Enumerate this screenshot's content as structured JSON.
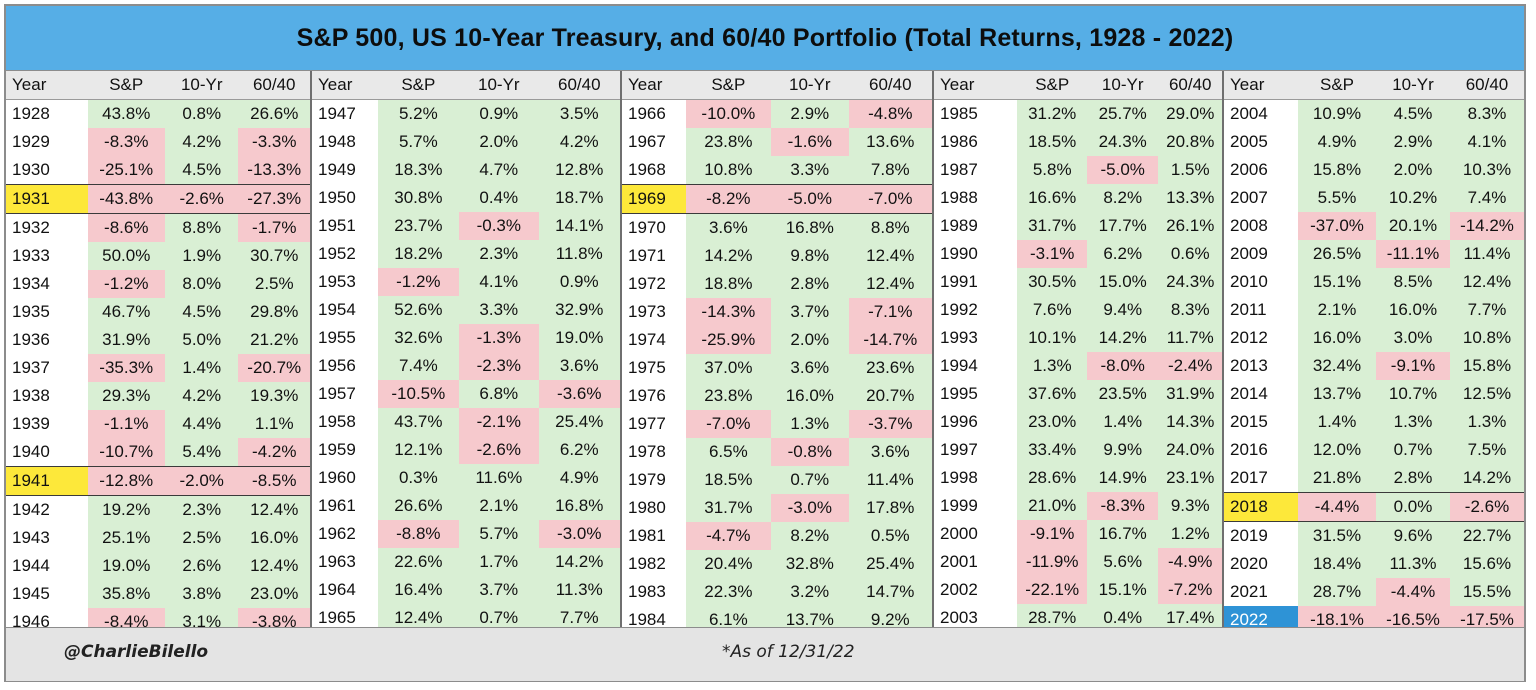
{
  "chart_data": {
    "type": "table",
    "title": "S&P 500, US 10-Year Treasury, and 60/40 Portfolio (Total Returns, 1928 - 2022)",
    "columns": [
      "Year",
      "S&P",
      "10-Yr",
      "60/40"
    ],
    "rows": [
      [
        "1928",
        "43.8%",
        "0.8%",
        "26.6%"
      ],
      [
        "1929",
        "-8.3%",
        "4.2%",
        "-3.3%"
      ],
      [
        "1930",
        "-25.1%",
        "4.5%",
        "-13.3%"
      ],
      [
        "1931",
        "-43.8%",
        "-2.6%",
        "-27.3%"
      ],
      [
        "1932",
        "-8.6%",
        "8.8%",
        "-1.7%"
      ],
      [
        "1933",
        "50.0%",
        "1.9%",
        "30.7%"
      ],
      [
        "1934",
        "-1.2%",
        "8.0%",
        "2.5%"
      ],
      [
        "1935",
        "46.7%",
        "4.5%",
        "29.8%"
      ],
      [
        "1936",
        "31.9%",
        "5.0%",
        "21.2%"
      ],
      [
        "1937",
        "-35.3%",
        "1.4%",
        "-20.7%"
      ],
      [
        "1938",
        "29.3%",
        "4.2%",
        "19.3%"
      ],
      [
        "1939",
        "-1.1%",
        "4.4%",
        "1.1%"
      ],
      [
        "1940",
        "-10.7%",
        "5.4%",
        "-4.2%"
      ],
      [
        "1941",
        "-12.8%",
        "-2.0%",
        "-8.5%"
      ],
      [
        "1942",
        "19.2%",
        "2.3%",
        "12.4%"
      ],
      [
        "1943",
        "25.1%",
        "2.5%",
        "16.0%"
      ],
      [
        "1944",
        "19.0%",
        "2.6%",
        "12.4%"
      ],
      [
        "1945",
        "35.8%",
        "3.8%",
        "23.0%"
      ],
      [
        "1946",
        "-8.4%",
        "3.1%",
        "-3.8%"
      ],
      [
        "1947",
        "5.2%",
        "0.9%",
        "3.5%"
      ],
      [
        "1948",
        "5.7%",
        "2.0%",
        "4.2%"
      ],
      [
        "1949",
        "18.3%",
        "4.7%",
        "12.8%"
      ],
      [
        "1950",
        "30.8%",
        "0.4%",
        "18.7%"
      ],
      [
        "1951",
        "23.7%",
        "-0.3%",
        "14.1%"
      ],
      [
        "1952",
        "18.2%",
        "2.3%",
        "11.8%"
      ],
      [
        "1953",
        "-1.2%",
        "4.1%",
        "0.9%"
      ],
      [
        "1954",
        "52.6%",
        "3.3%",
        "32.9%"
      ],
      [
        "1955",
        "32.6%",
        "-1.3%",
        "19.0%"
      ],
      [
        "1956",
        "7.4%",
        "-2.3%",
        "3.6%"
      ],
      [
        "1957",
        "-10.5%",
        "6.8%",
        "-3.6%"
      ],
      [
        "1958",
        "43.7%",
        "-2.1%",
        "25.4%"
      ],
      [
        "1959",
        "12.1%",
        "-2.6%",
        "6.2%"
      ],
      [
        "1960",
        "0.3%",
        "11.6%",
        "4.9%"
      ],
      [
        "1961",
        "26.6%",
        "2.1%",
        "16.8%"
      ],
      [
        "1962",
        "-8.8%",
        "5.7%",
        "-3.0%"
      ],
      [
        "1963",
        "22.6%",
        "1.7%",
        "14.2%"
      ],
      [
        "1964",
        "16.4%",
        "3.7%",
        "11.3%"
      ],
      [
        "1965",
        "12.4%",
        "0.7%",
        "7.7%"
      ],
      [
        "1966",
        "-10.0%",
        "2.9%",
        "-4.8%"
      ],
      [
        "1967",
        "23.8%",
        "-1.6%",
        "13.6%"
      ],
      [
        "1968",
        "10.8%",
        "3.3%",
        "7.8%"
      ],
      [
        "1969",
        "-8.2%",
        "-5.0%",
        "-7.0%"
      ],
      [
        "1970",
        "3.6%",
        "16.8%",
        "8.8%"
      ],
      [
        "1971",
        "14.2%",
        "9.8%",
        "12.4%"
      ],
      [
        "1972",
        "18.8%",
        "2.8%",
        "12.4%"
      ],
      [
        "1973",
        "-14.3%",
        "3.7%",
        "-7.1%"
      ],
      [
        "1974",
        "-25.9%",
        "2.0%",
        "-14.7%"
      ],
      [
        "1975",
        "37.0%",
        "3.6%",
        "23.6%"
      ],
      [
        "1976",
        "23.8%",
        "16.0%",
        "20.7%"
      ],
      [
        "1977",
        "-7.0%",
        "1.3%",
        "-3.7%"
      ],
      [
        "1978",
        "6.5%",
        "-0.8%",
        "3.6%"
      ],
      [
        "1979",
        "18.5%",
        "0.7%",
        "11.4%"
      ],
      [
        "1980",
        "31.7%",
        "-3.0%",
        "17.8%"
      ],
      [
        "1981",
        "-4.7%",
        "8.2%",
        "0.5%"
      ],
      [
        "1982",
        "20.4%",
        "32.8%",
        "25.4%"
      ],
      [
        "1983",
        "22.3%",
        "3.2%",
        "14.7%"
      ],
      [
        "1984",
        "6.1%",
        "13.7%",
        "9.2%"
      ],
      [
        "1985",
        "31.2%",
        "25.7%",
        "29.0%"
      ],
      [
        "1986",
        "18.5%",
        "24.3%",
        "20.8%"
      ],
      [
        "1987",
        "5.8%",
        "-5.0%",
        "1.5%"
      ],
      [
        "1988",
        "16.6%",
        "8.2%",
        "13.3%"
      ],
      [
        "1989",
        "31.7%",
        "17.7%",
        "26.1%"
      ],
      [
        "1990",
        "-3.1%",
        "6.2%",
        "0.6%"
      ],
      [
        "1991",
        "30.5%",
        "15.0%",
        "24.3%"
      ],
      [
        "1992",
        "7.6%",
        "9.4%",
        "8.3%"
      ],
      [
        "1993",
        "10.1%",
        "14.2%",
        "11.7%"
      ],
      [
        "1994",
        "1.3%",
        "-8.0%",
        "-2.4%"
      ],
      [
        "1995",
        "37.6%",
        "23.5%",
        "31.9%"
      ],
      [
        "1996",
        "23.0%",
        "1.4%",
        "14.3%"
      ],
      [
        "1997",
        "33.4%",
        "9.9%",
        "24.0%"
      ],
      [
        "1998",
        "28.6%",
        "14.9%",
        "23.1%"
      ],
      [
        "1999",
        "21.0%",
        "-8.3%",
        "9.3%"
      ],
      [
        "2000",
        "-9.1%",
        "16.7%",
        "1.2%"
      ],
      [
        "2001",
        "-11.9%",
        "5.6%",
        "-4.9%"
      ],
      [
        "2002",
        "-22.1%",
        "15.1%",
        "-7.2%"
      ],
      [
        "2003",
        "28.7%",
        "0.4%",
        "17.4%"
      ],
      [
        "2004",
        "10.9%",
        "4.5%",
        "8.3%"
      ],
      [
        "2005",
        "4.9%",
        "2.9%",
        "4.1%"
      ],
      [
        "2006",
        "15.8%",
        "2.0%",
        "10.3%"
      ],
      [
        "2007",
        "5.5%",
        "10.2%",
        "7.4%"
      ],
      [
        "2008",
        "-37.0%",
        "20.1%",
        "-14.2%"
      ],
      [
        "2009",
        "26.5%",
        "-11.1%",
        "11.4%"
      ],
      [
        "2010",
        "15.1%",
        "8.5%",
        "12.4%"
      ],
      [
        "2011",
        "2.1%",
        "16.0%",
        "7.7%"
      ],
      [
        "2012",
        "16.0%",
        "3.0%",
        "10.8%"
      ],
      [
        "2013",
        "32.4%",
        "-9.1%",
        "15.8%"
      ],
      [
        "2014",
        "13.7%",
        "10.7%",
        "12.5%"
      ],
      [
        "2015",
        "1.4%",
        "1.3%",
        "1.3%"
      ],
      [
        "2016",
        "12.0%",
        "0.7%",
        "7.5%"
      ],
      [
        "2017",
        "21.8%",
        "2.8%",
        "14.2%"
      ],
      [
        "2018",
        "-4.4%",
        "0.0%",
        "-2.6%"
      ],
      [
        "2019",
        "31.5%",
        "9.6%",
        "22.7%"
      ],
      [
        "2020",
        "18.4%",
        "11.3%",
        "15.6%"
      ],
      [
        "2021",
        "28.7%",
        "-4.4%",
        "15.5%"
      ],
      [
        "2022",
        "-18.1%",
        "-16.5%",
        "-17.5%"
      ]
    ],
    "highlight_years": [
      "1931",
      "1941",
      "1969",
      "2018"
    ],
    "current_year": "2022",
    "colors": {
      "title_bg": "#56aee6",
      "positive": "#d9efd4",
      "negative": "#f6c9cd",
      "highlight": "#fde83a",
      "current": "#2e93d6",
      "header_bg": "#e9e9e9",
      "footer_bg": "#e4e4e4"
    }
  },
  "footer": {
    "credit": "@CharlieBilello",
    "as_of": "*As of 12/31/22"
  }
}
